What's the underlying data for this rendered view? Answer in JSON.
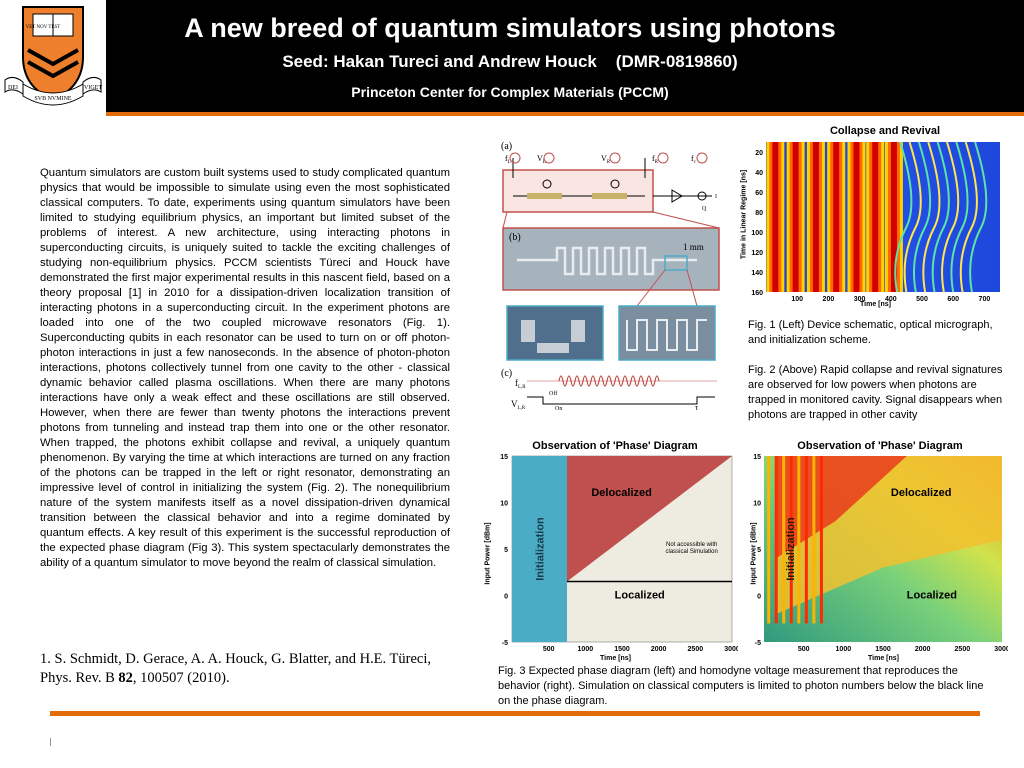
{
  "header": {
    "title": "A new breed of quantum simulators using photons",
    "subtitle": "Seed: Hakan Tureci and Andrew Houck    (DMR-0819860)",
    "center": "Princeton Center for Complex Materials (PCCM)",
    "logo": {
      "banner_left": "DEI",
      "banner_middle": "SVB NVMINE",
      "banner_right": "VIGET",
      "shield_text": "VET NOV TEST"
    },
    "colors": {
      "accent": "#e36c0a",
      "header_bg": "#000000"
    }
  },
  "body_text": "Quantum simulators are custom built systems used to study complicated quantum physics that would be impossible to simulate using even the most sophisticated classical computers.  To date, experiments using quantum simulators have been limited to studying equilibrium physics, an important but limited subset of the problems of interest.  A new architecture, using interacting photons in superconducting circuits, is uniquely suited to tackle the exciting challenges of studying non-equilibrium physics. PCCM scientists Türeci and Houck have demonstrated the first major experimental results in this nascent field, based on a theory proposal [1] in 2010 for a dissipation-driven localization transition of interacting photons in a superconducting circuit.  In the experiment photons are loaded into one of the two coupled microwave resonators (Fig. 1). Superconducting qubits in each resonator can be used to turn on or off photon-photon interactions in just a few nanoseconds.  In the absence of photon-photon interactions, photons collectively tunnel from one cavity to the other - classical dynamic behavior called plasma oscillations.  When there are many photons interactions have only a weak effect and these oscillations are still observed. However, when there are fewer than twenty photons the interactions prevent photons from tunneling and instead trap them into one or the other resonator.  When trapped, the photons exhibit collapse and revival, a uniquely quantum phenomenon. By varying the time at which interactions are turned on any fraction of the photons can be trapped in the left or right resonator, demonstrating an impressive level of control in initializing the system (Fig. 2). The nonequilibrium nature of the system manifests itself as a novel dissipation-driven dynamical transition between the classical behavior and into a regime dominated by quantum effects.  A key result of this experiment is the successful reproduction of the expected phase diagram (Fig 3). This system spectacularly demonstrates the ability of a quantum simulator to move beyond the realm of classical simulation.",
  "reference": {
    "prefix": "1. S. Schmidt, D. Gerace, A. A. Houck, G. Blatter, and H.E. Türeci, Phys. Rev. B ",
    "volume": "82",
    "suffix": ", 100507 (2010)."
  },
  "captions": {
    "fig1": "Fig. 1 (Left) Device schematic, optical micrograph, and initialization scheme.",
    "fig2": "Fig. 2 (Above) Rapid collapse and revival signatures are observed for low powers when photons are trapped in monitored cavity.  Signal disappears when photons are trapped in other cavity",
    "fig3": "Fig. 3 Expected phase diagram (left) and homodyne voltage measurement that reproduces the behavior (right).  Simulation on classical computers is limited to photon numbers below the black line on the phase diagram."
  },
  "fig1": {
    "panel_a": "(a)",
    "panel_b": "(b)",
    "panel_c": "(c)",
    "scale": "1 mm",
    "labels": {
      "fl": "f",
      "vl": "V",
      "vr": "V",
      "fr": "f",
      "fc": "f",
      "i": "I",
      "q": "Q",
      "off": "Off",
      "on": "On",
      "flr": "f",
      "vlr": "V",
      "tau": "τ"
    },
    "label_subs": {
      "fl": "L",
      "vl": "L",
      "vr": "R",
      "fr": "R",
      "fc": "c",
      "flr": "L,R",
      "vlr": "L,R"
    }
  },
  "chart_data": [
    {
      "type": "heatmap",
      "title": "Collapse and Revival",
      "xlabel": "Time [ns]",
      "ylabel": "Time in Linear Regime [ns]",
      "x_ticks": [
        100,
        200,
        300,
        400,
        500,
        600,
        700
      ],
      "y_ticks": [
        20,
        40,
        60,
        80,
        100,
        120,
        140,
        160
      ],
      "xlim": [
        0,
        750
      ],
      "ylim": [
        160,
        10
      ],
      "colormap": "jet"
    },
    {
      "type": "area",
      "title": "Observation of 'Phase' Diagram",
      "xlabel": "Time [ns]",
      "ylabel": "Input Power [dBm]",
      "x_ticks": [
        500,
        1000,
        1500,
        2000,
        2500,
        3000
      ],
      "y_ticks": [
        15,
        10,
        5,
        0,
        -5
      ],
      "xlim": [
        0,
        3000
      ],
      "ylim": [
        -5,
        15
      ],
      "regions": {
        "initialization": "Initialization",
        "delocalized": "Delocalized",
        "localized": "Localized",
        "not_accessible": "Not accessible with classical Simulation"
      },
      "colors": {
        "initialization": "#4bacc6",
        "delocalized": "#c0504d",
        "localized": "#eeece1",
        "line": "#000000"
      },
      "boundary_line_dbm": 1.5,
      "initialization_end_ns": 750
    },
    {
      "type": "heatmap",
      "title": "Observation of 'Phase' Diagram",
      "xlabel": "Time [ns]",
      "ylabel": "Input Power [dBm]",
      "x_ticks": [
        500,
        1000,
        1500,
        2000,
        2500,
        3000
      ],
      "y_ticks": [
        15,
        10,
        5,
        0,
        -5
      ],
      "xlim": [
        0,
        3000
      ],
      "ylim": [
        -5,
        15
      ],
      "colormap": "jet",
      "regions": {
        "initialization": "Initialization",
        "delocalized": "Delocalized",
        "localized": "Localized"
      }
    }
  ]
}
